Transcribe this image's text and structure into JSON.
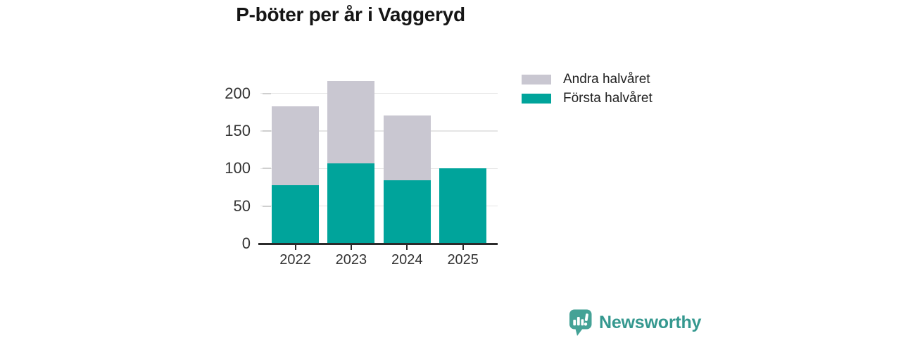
{
  "title": "P-böter per år i Vaggeryd",
  "chart_data": {
    "type": "bar",
    "stacked": true,
    "title": "P-böter per år i Vaggeryd",
    "categories": [
      "2022",
      "2023",
      "2024",
      "2025"
    ],
    "series": [
      {
        "name": "Första halvåret",
        "color": "#00a49b",
        "values": [
          78,
          107,
          84,
          100
        ]
      },
      {
        "name": "Andra halvåret",
        "color": "#c9c7d1",
        "values": [
          105,
          110,
          87,
          0
        ]
      }
    ],
    "totals": [
      183,
      217,
      171,
      100
    ],
    "xlabel": "",
    "ylabel": "",
    "yticks": [
      0,
      50,
      100,
      150,
      200
    ],
    "ylim": [
      0,
      220
    ],
    "grid": true,
    "legend_position": "top-right",
    "legend": [
      {
        "label": "Andra halvåret",
        "color": "#c9c7d1"
      },
      {
        "label": "Första halvåret",
        "color": "#00a49b"
      }
    ]
  },
  "axis": {
    "text_color": "#333333",
    "line_color": "#2b2b2b",
    "grid_color": "#e5e5e5"
  },
  "footer": {
    "brand": "Newsworthy",
    "brand_color": "#35988f",
    "icon_color": "#44a296"
  }
}
